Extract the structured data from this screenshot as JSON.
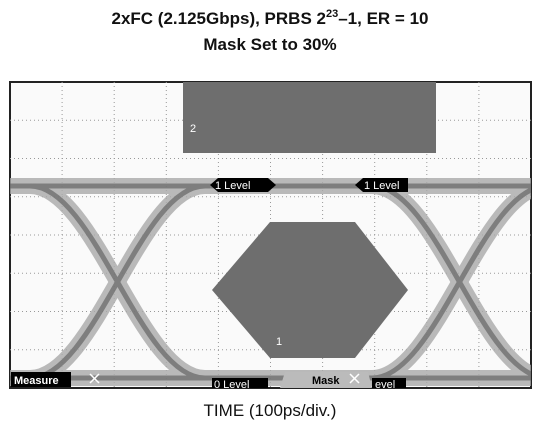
{
  "title": {
    "line1_before": "2xFC (2.125Gbps), PRBS 2",
    "line1_superscript": "23",
    "line1_after": "–1, ER = 10",
    "line2": "Mask Set to 30%"
  },
  "screen": {
    "mask_labels": [
      "2",
      "1"
    ],
    "markers": [
      "1 Level",
      "1 Level",
      "0 Level",
      "evel"
    ],
    "buttons": [
      "Measure",
      "Mask"
    ]
  },
  "x_axis_label": "TIME (100ps/div.)"
}
